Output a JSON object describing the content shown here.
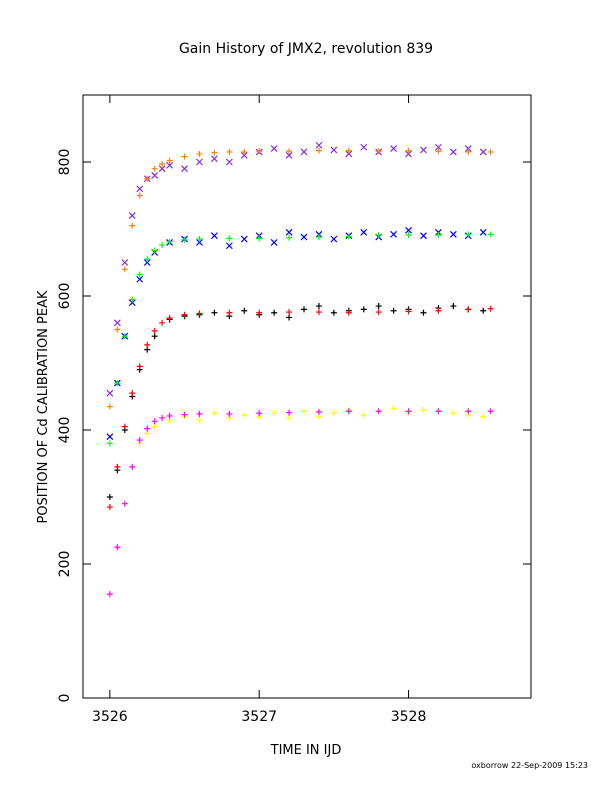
{
  "chart_data": {
    "type": "scatter",
    "title": "Gain History of JMX2, revolution 839",
    "xlabel": "TIME IN IJD",
    "ylabel": "POSITION OF Cd CALIBRATION PEAK",
    "xlim": [
      3525.82,
      3528.82
    ],
    "ylim": [
      0,
      900
    ],
    "xticks": [
      3526,
      3527,
      3528
    ],
    "yticks": [
      0,
      200,
      400,
      600,
      800
    ],
    "grid": false,
    "footer": "oxborrow 22-Sep-2009 15:23",
    "series": [
      {
        "color": "#8a2be2",
        "marker": "x",
        "points": [
          [
            3526.0,
            455
          ],
          [
            3526.05,
            560
          ],
          [
            3526.1,
            650
          ],
          [
            3526.15,
            720
          ],
          [
            3526.2,
            760
          ],
          [
            3526.25,
            775
          ],
          [
            3526.3,
            780
          ],
          [
            3526.35,
            790
          ],
          [
            3526.4,
            795
          ],
          [
            3526.5,
            790
          ],
          [
            3526.6,
            800
          ],
          [
            3526.7,
            805
          ],
          [
            3526.8,
            800
          ],
          [
            3526.9,
            810
          ],
          [
            3527.0,
            815
          ],
          [
            3527.1,
            820
          ],
          [
            3527.2,
            810
          ],
          [
            3527.3,
            815
          ],
          [
            3527.4,
            825
          ],
          [
            3527.5,
            818
          ],
          [
            3527.6,
            812
          ],
          [
            3527.7,
            822
          ],
          [
            3527.8,
            815
          ],
          [
            3527.9,
            820
          ],
          [
            3528.0,
            812
          ],
          [
            3528.1,
            818
          ],
          [
            3528.2,
            822
          ],
          [
            3528.3,
            815
          ],
          [
            3528.4,
            820
          ],
          [
            3528.5,
            815
          ]
        ]
      },
      {
        "color": "#ff7f00",
        "marker": "+",
        "points": [
          [
            3526.0,
            435
          ],
          [
            3526.05,
            550
          ],
          [
            3526.1,
            640
          ],
          [
            3526.15,
            705
          ],
          [
            3526.2,
            750
          ],
          [
            3526.25,
            775
          ],
          [
            3526.3,
            790
          ],
          [
            3526.35,
            797
          ],
          [
            3526.4,
            802
          ],
          [
            3526.5,
            808
          ],
          [
            3526.6,
            812
          ],
          [
            3526.7,
            814
          ],
          [
            3526.8,
            815
          ],
          [
            3526.9,
            815
          ],
          [
            3527.0,
            816
          ],
          [
            3527.2,
            816
          ],
          [
            3527.4,
            817
          ],
          [
            3527.6,
            817
          ],
          [
            3527.8,
            816
          ],
          [
            3528.0,
            817
          ],
          [
            3528.2,
            816
          ],
          [
            3528.4,
            815
          ],
          [
            3528.55,
            815
          ]
        ]
      },
      {
        "color": "#0000ff",
        "marker": "x",
        "points": [
          [
            3526.0,
            390
          ],
          [
            3526.05,
            470
          ],
          [
            3526.1,
            540
          ],
          [
            3526.15,
            590
          ],
          [
            3526.2,
            625
          ],
          [
            3526.25,
            650
          ],
          [
            3526.3,
            665
          ],
          [
            3526.4,
            680
          ],
          [
            3526.5,
            685
          ],
          [
            3526.6,
            680
          ],
          [
            3526.7,
            690
          ],
          [
            3526.8,
            675
          ],
          [
            3526.9,
            685
          ],
          [
            3527.0,
            690
          ],
          [
            3527.1,
            680
          ],
          [
            3527.2,
            695
          ],
          [
            3527.3,
            688
          ],
          [
            3527.4,
            692
          ],
          [
            3527.5,
            685
          ],
          [
            3527.6,
            690
          ],
          [
            3527.7,
            695
          ],
          [
            3527.8,
            688
          ],
          [
            3527.9,
            692
          ],
          [
            3528.0,
            698
          ],
          [
            3528.1,
            690
          ],
          [
            3528.2,
            695
          ],
          [
            3528.3,
            692
          ],
          [
            3528.4,
            690
          ],
          [
            3528.5,
            695
          ]
        ]
      },
      {
        "color": "#00ff00",
        "marker": "+",
        "points": [
          [
            3526.0,
            380
          ],
          [
            3526.05,
            470
          ],
          [
            3526.1,
            540
          ],
          [
            3526.15,
            595
          ],
          [
            3526.2,
            632
          ],
          [
            3526.25,
            655
          ],
          [
            3526.3,
            668
          ],
          [
            3526.35,
            676
          ],
          [
            3526.4,
            681
          ],
          [
            3526.5,
            684
          ],
          [
            3526.6,
            685
          ],
          [
            3526.8,
            686
          ],
          [
            3527.0,
            686
          ],
          [
            3527.2,
            687
          ],
          [
            3527.4,
            688
          ],
          [
            3527.6,
            689
          ],
          [
            3527.8,
            691
          ],
          [
            3528.0,
            691
          ],
          [
            3528.2,
            691
          ],
          [
            3528.4,
            692
          ],
          [
            3528.55,
            692
          ]
        ]
      },
      {
        "color": "#000000",
        "marker": "+",
        "points": [
          [
            3526.0,
            300
          ],
          [
            3526.05,
            340
          ],
          [
            3526.1,
            400
          ],
          [
            3526.15,
            450
          ],
          [
            3526.2,
            490
          ],
          [
            3526.25,
            520
          ],
          [
            3526.3,
            540
          ],
          [
            3526.4,
            565
          ],
          [
            3526.5,
            570
          ],
          [
            3526.6,
            572
          ],
          [
            3526.7,
            575
          ],
          [
            3526.8,
            570
          ],
          [
            3526.9,
            578
          ],
          [
            3527.0,
            572
          ],
          [
            3527.1,
            575
          ],
          [
            3527.2,
            568
          ],
          [
            3527.3,
            580
          ],
          [
            3527.4,
            585
          ],
          [
            3527.5,
            575
          ],
          [
            3527.6,
            578
          ],
          [
            3527.7,
            580
          ],
          [
            3527.8,
            585
          ],
          [
            3527.9,
            578
          ],
          [
            3528.0,
            580
          ],
          [
            3528.1,
            575
          ],
          [
            3528.2,
            582
          ],
          [
            3528.3,
            585
          ],
          [
            3528.4,
            580
          ],
          [
            3528.5,
            578
          ]
        ]
      },
      {
        "color": "#ff0000",
        "marker": "+",
        "points": [
          [
            3526.0,
            285
          ],
          [
            3526.05,
            345
          ],
          [
            3526.1,
            405
          ],
          [
            3526.15,
            455
          ],
          [
            3526.2,
            495
          ],
          [
            3526.25,
            527
          ],
          [
            3526.3,
            548
          ],
          [
            3526.35,
            560
          ],
          [
            3526.4,
            567
          ],
          [
            3526.5,
            572
          ],
          [
            3526.6,
            574
          ],
          [
            3526.8,
            575
          ],
          [
            3527.0,
            575
          ],
          [
            3527.2,
            576
          ],
          [
            3527.4,
            576
          ],
          [
            3527.6,
            575
          ],
          [
            3527.8,
            576
          ],
          [
            3528.0,
            577
          ],
          [
            3528.2,
            578
          ],
          [
            3528.4,
            580
          ],
          [
            3528.55,
            581
          ]
        ]
      },
      {
        "color": "#ffff00",
        "marker": "+",
        "points": [
          [
            3526.2,
            380
          ],
          [
            3526.25,
            395
          ],
          [
            3526.3,
            405
          ],
          [
            3526.4,
            415
          ],
          [
            3526.5,
            420
          ],
          [
            3526.6,
            415
          ],
          [
            3526.7,
            425
          ],
          [
            3526.8,
            418
          ],
          [
            3526.9,
            422
          ],
          [
            3527.0,
            420
          ],
          [
            3527.1,
            425
          ],
          [
            3527.2,
            418
          ],
          [
            3527.3,
            428
          ],
          [
            3527.4,
            420
          ],
          [
            3527.5,
            425
          ],
          [
            3527.6,
            430
          ],
          [
            3527.7,
            422
          ],
          [
            3527.8,
            428
          ],
          [
            3527.9,
            432
          ],
          [
            3528.0,
            425
          ],
          [
            3528.1,
            430
          ],
          [
            3528.2,
            428
          ],
          [
            3528.3,
            425
          ],
          [
            3528.4,
            422
          ],
          [
            3528.5,
            420
          ]
        ]
      },
      {
        "color": "#ff00ff",
        "marker": "+",
        "points": [
          [
            3526.0,
            155
          ],
          [
            3526.05,
            225
          ],
          [
            3526.1,
            290
          ],
          [
            3526.15,
            345
          ],
          [
            3526.2,
            385
          ],
          [
            3526.25,
            402
          ],
          [
            3526.3,
            413
          ],
          [
            3526.35,
            418
          ],
          [
            3526.4,
            421
          ],
          [
            3526.5,
            423
          ],
          [
            3526.6,
            424
          ],
          [
            3526.8,
            424
          ],
          [
            3527.0,
            425
          ],
          [
            3527.2,
            426
          ],
          [
            3527.4,
            427
          ],
          [
            3527.6,
            428
          ],
          [
            3527.8,
            428
          ],
          [
            3528.0,
            428
          ],
          [
            3528.2,
            428
          ],
          [
            3528.4,
            428
          ],
          [
            3528.55,
            428
          ]
        ]
      }
    ]
  }
}
